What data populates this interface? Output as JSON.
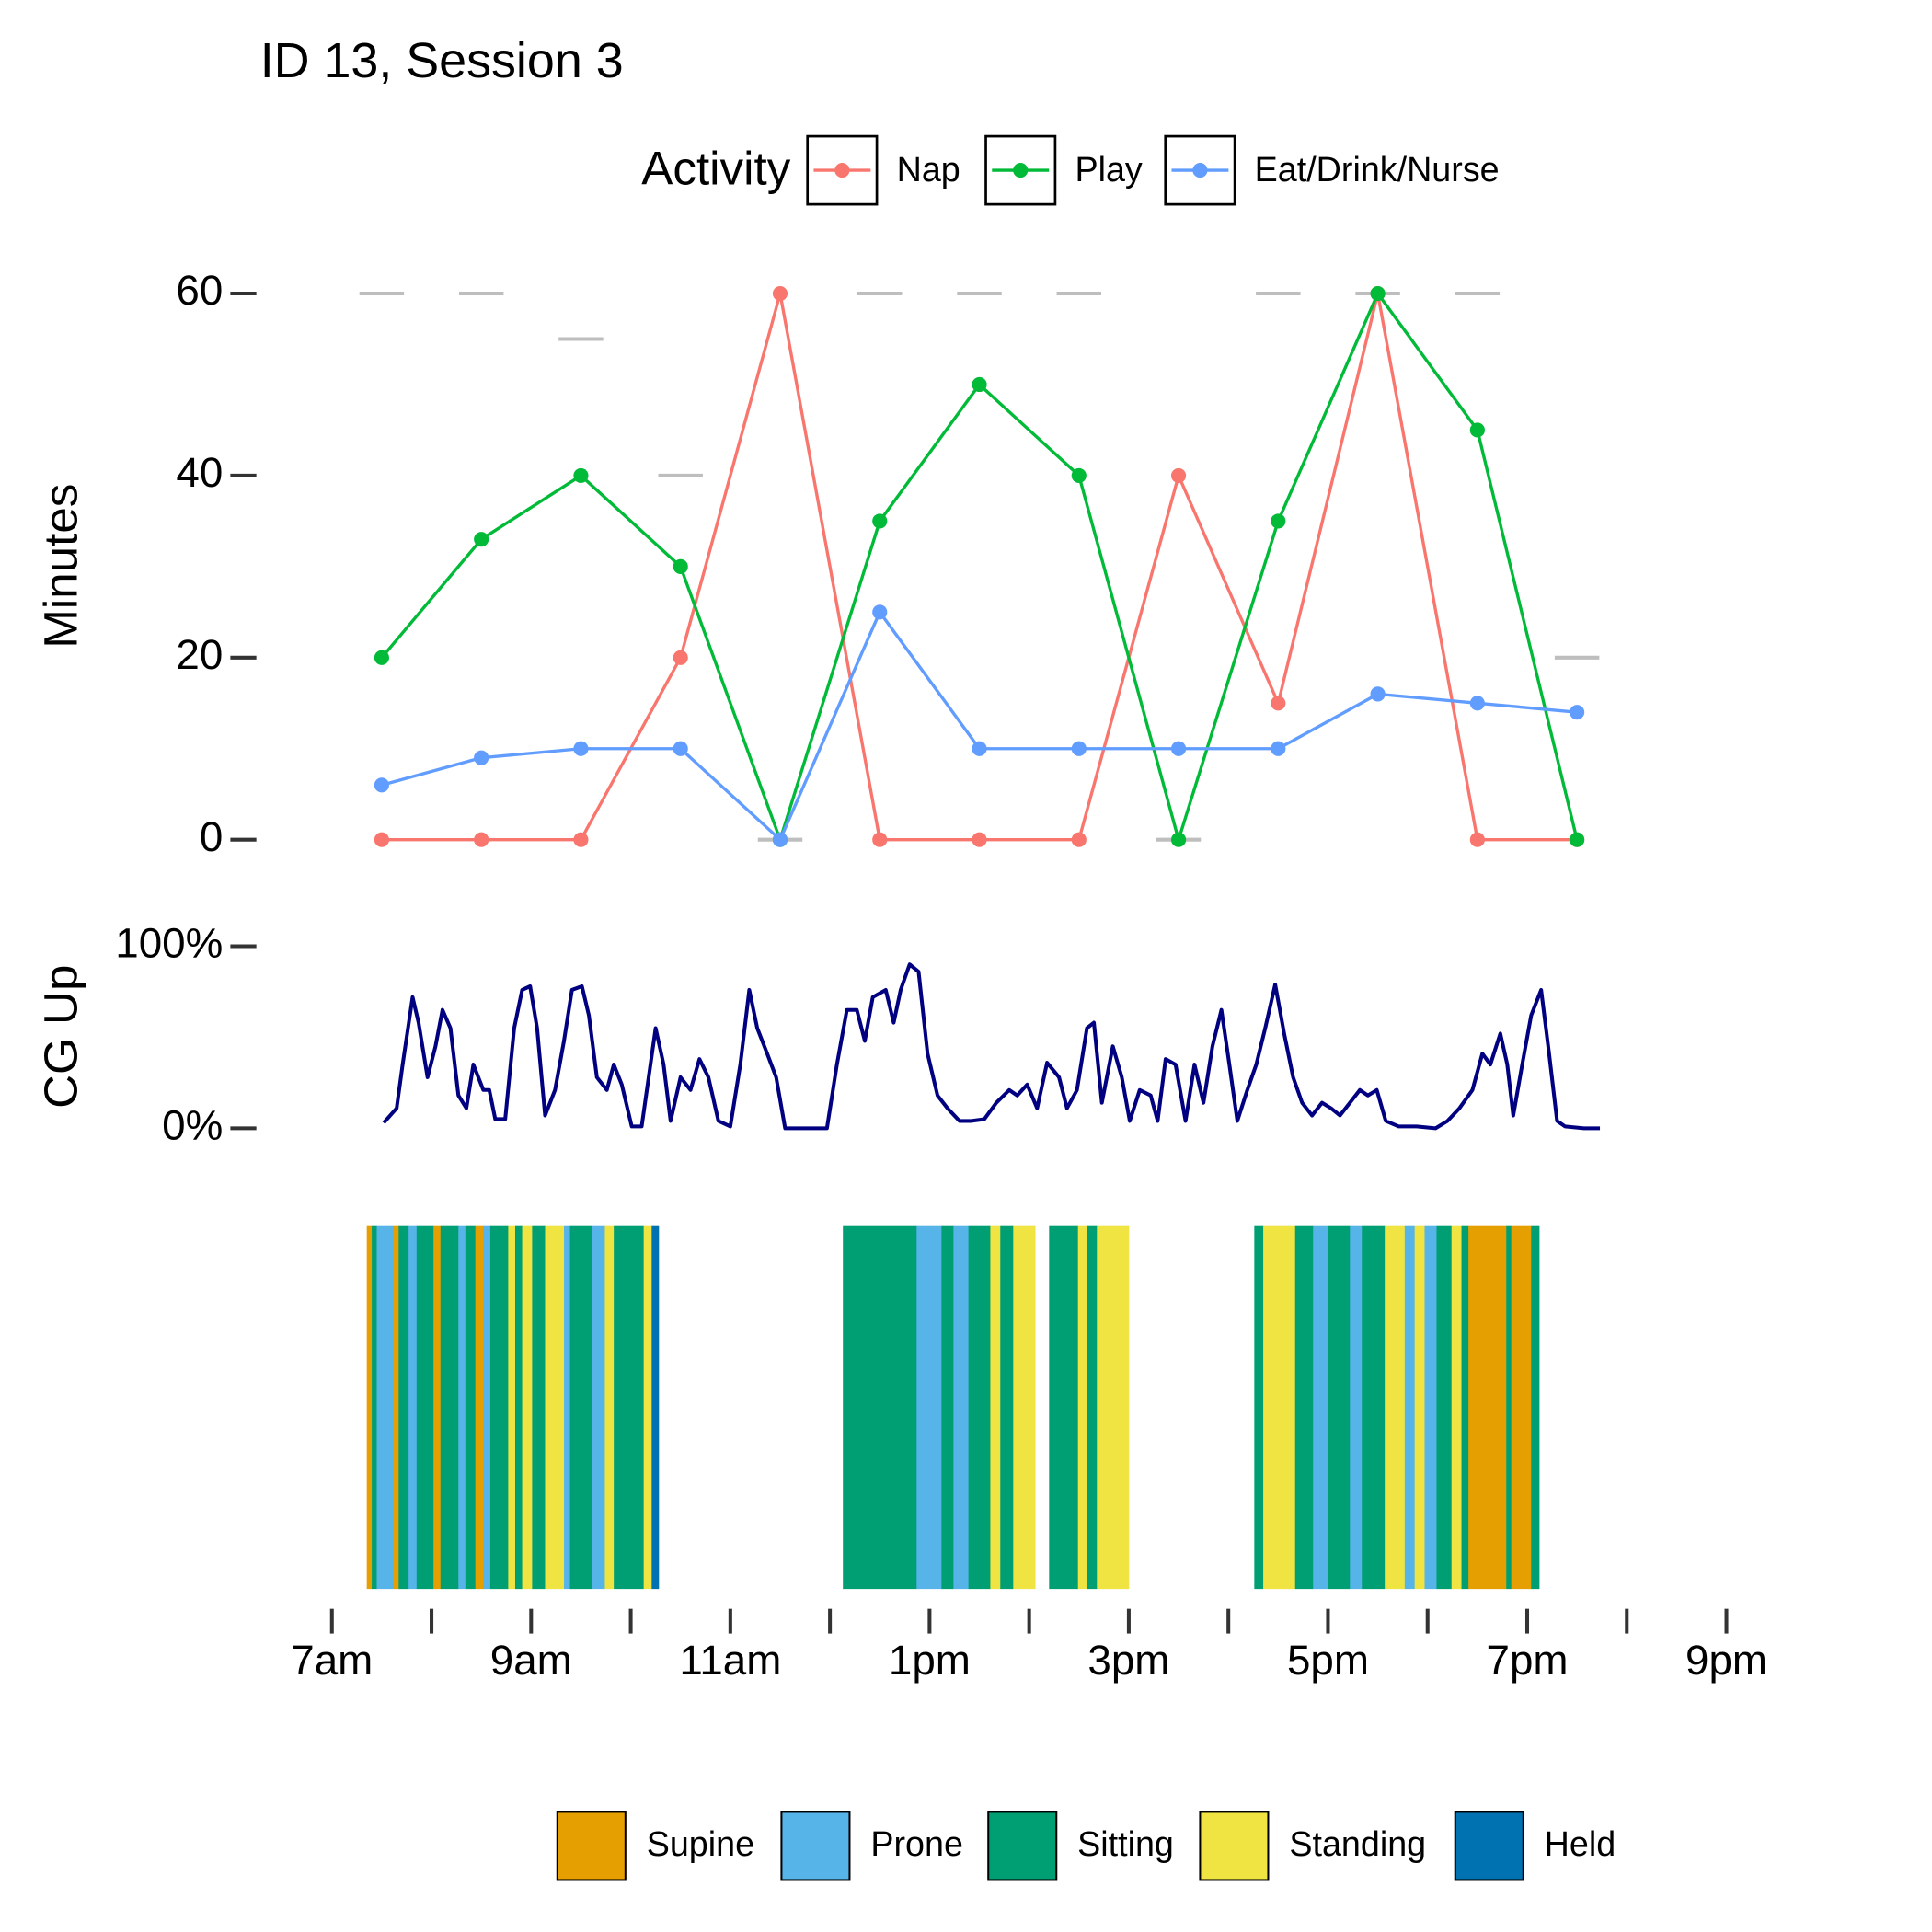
{
  "chart_data": [
    {
      "type": "line",
      "title": "ID 13, Session 3",
      "y_label": "Minutes",
      "legend_title": "Activity",
      "x": [
        7.5,
        8.5,
        9.5,
        10.5,
        11.5,
        12.5,
        13.5,
        14.5,
        15.5,
        16.5,
        17.5,
        18.5,
        19.5
      ],
      "xlim": [
        7,
        21
      ],
      "ylim": [
        0,
        60
      ],
      "yticks": [
        0,
        20,
        40,
        60
      ],
      "series": [
        {
          "color": "#BEBEBE",
          "marker": "dash",
          "values": [
            60,
            60,
            55,
            40,
            0,
            60,
            60,
            60,
            0,
            60,
            60,
            60,
            20
          ]
        },
        {
          "name": "Nap",
          "color": "#F8766D",
          "values": [
            0,
            0,
            0,
            20,
            60,
            0,
            0,
            0,
            40,
            15,
            60,
            0,
            0
          ]
        },
        {
          "name": "Play",
          "color": "#00BA38",
          "values": [
            20,
            33,
            40,
            30,
            0,
            35,
            50,
            40,
            0,
            35,
            60,
            45,
            0
          ]
        },
        {
          "name": "Eat/Drink/Nurse",
          "color": "#619CFF",
          "values": [
            6,
            9,
            10,
            10,
            0,
            25,
            10,
            10,
            10,
            10,
            16,
            15,
            14
          ]
        }
      ]
    },
    {
      "type": "line",
      "y_label": "CG Up",
      "color": "#000080",
      "xlim": [
        7,
        21
      ],
      "ylim": [
        0,
        100
      ],
      "yticks": [
        {
          "value": 0,
          "label": "0%"
        },
        {
          "value": 100,
          "label": "100%"
        }
      ],
      "x": [
        7.52,
        7.65,
        7.71,
        7.81,
        7.87,
        7.96,
        8.04,
        8.11,
        8.19,
        8.27,
        8.35,
        8.42,
        8.52,
        8.58,
        8.64,
        8.74,
        8.83,
        8.91,
        8.99,
        9.06,
        9.14,
        9.24,
        9.33,
        9.41,
        9.51,
        9.58,
        9.66,
        9.76,
        9.83,
        9.91,
        10.01,
        10.11,
        10.18,
        10.25,
        10.33,
        10.4,
        10.5,
        10.6,
        10.69,
        10.78,
        10.88,
        11.0,
        11.1,
        11.19,
        11.27,
        11.37,
        11.46,
        11.55,
        11.75,
        11.97,
        12.07,
        12.17,
        12.27,
        12.35,
        12.43,
        12.56,
        12.64,
        12.71,
        12.8,
        12.89,
        12.98,
        13.08,
        13.18,
        13.3,
        13.42,
        13.55,
        13.67,
        13.8,
        13.88,
        13.98,
        14.08,
        14.18,
        14.3,
        14.38,
        14.48,
        14.58,
        14.65,
        14.73,
        14.84,
        14.93,
        15.01,
        15.11,
        15.22,
        15.29,
        15.37,
        15.47,
        15.57,
        15.66,
        15.75,
        15.84,
        15.93,
        16.01,
        16.09,
        16.19,
        16.28,
        16.37,
        16.47,
        16.56,
        16.65,
        16.74,
        16.84,
        16.94,
        17.03,
        17.12,
        17.22,
        17.32,
        17.4,
        17.49,
        17.58,
        17.71,
        17.89,
        18.08,
        18.2,
        18.32,
        18.45,
        18.55,
        18.63,
        18.73,
        18.8,
        18.86,
        18.95,
        19.04,
        19.14,
        19.22,
        19.3,
        19.38,
        19.57,
        19.73
      ],
      "values": [
        3,
        11,
        35,
        72,
        58,
        28,
        45,
        65,
        55,
        18,
        11,
        35,
        21,
        21,
        5,
        5,
        55,
        76,
        78,
        55,
        7,
        21,
        48,
        76,
        78,
        62,
        28,
        21,
        35,
        24,
        1,
        1,
        28,
        55,
        35,
        4,
        28,
        21,
        38,
        28,
        4,
        1,
        35,
        76,
        55,
        41,
        28,
        0,
        0,
        0,
        35,
        65,
        65,
        48,
        72,
        76,
        58,
        76,
        90,
        86,
        41,
        18,
        11,
        4,
        4,
        5,
        14,
        21,
        18,
        24,
        11,
        36,
        28,
        11,
        21,
        55,
        58,
        14,
        45,
        28,
        4,
        21,
        18,
        4,
        38,
        35,
        4,
        35,
        14,
        45,
        65,
        35,
        4,
        21,
        35,
        55,
        79,
        52,
        28,
        14,
        7,
        14,
        11,
        7,
        14,
        21,
        18,
        21,
        4,
        1,
        1,
        0,
        4,
        11,
        21,
        41,
        35,
        52,
        35,
        7,
        35,
        62,
        76,
        41,
        4,
        1,
        0,
        0
      ]
    },
    {
      "type": "raster",
      "xlim": [
        7,
        21
      ],
      "xticks": [
        {
          "value": 7,
          "label": "7am"
        },
        {
          "value": 8,
          "label": null
        },
        {
          "value": 9,
          "label": "9am"
        },
        {
          "value": 10,
          "label": null
        },
        {
          "value": 11,
          "label": "11am"
        },
        {
          "value": 12,
          "label": null
        },
        {
          "value": 13,
          "label": "1pm"
        },
        {
          "value": 14,
          "label": null
        },
        {
          "value": 15,
          "label": "3pm"
        },
        {
          "value": 16,
          "label": null
        },
        {
          "value": 17,
          "label": "5pm"
        },
        {
          "value": 18,
          "label": null
        },
        {
          "value": 19,
          "label": "7pm"
        },
        {
          "value": 20,
          "label": null
        },
        {
          "value": 21,
          "label": "9pm"
        }
      ],
      "categories": [
        "Supine",
        "Prone",
        "Sitting",
        "Standing",
        "Held"
      ],
      "colors": [
        "#E69F00",
        "#56B4E9",
        "#009E73",
        "#F0E442",
        "#0072B2"
      ],
      "start": [
        7.35,
        7.4,
        7.45,
        7.62,
        7.67,
        7.77,
        7.85,
        8.02,
        8.09,
        8.27,
        8.34,
        8.44,
        8.52,
        8.59,
        8.77,
        8.84,
        8.91,
        9.01,
        9.14,
        9.33,
        9.39,
        9.61,
        9.74,
        9.83,
        10.13,
        10.21,
        12.13,
        12.87,
        13.12,
        13.24,
        13.39,
        13.61,
        13.71,
        13.84,
        14.2,
        14.49,
        14.58,
        14.68,
        16.26,
        16.35,
        16.67,
        16.85,
        17.0,
        17.22,
        17.34,
        17.57,
        17.77,
        17.87,
        17.97,
        18.09,
        18.24,
        18.34,
        18.41,
        18.79,
        18.84,
        19.04
      ],
      "end": [
        7.4,
        7.45,
        7.62,
        7.67,
        7.77,
        7.85,
        8.02,
        8.09,
        8.27,
        8.34,
        8.44,
        8.52,
        8.59,
        8.77,
        8.84,
        8.91,
        9.01,
        9.14,
        9.33,
        9.39,
        9.61,
        9.74,
        9.83,
        10.13,
        10.21,
        10.28,
        12.87,
        13.12,
        13.24,
        13.39,
        13.61,
        13.71,
        13.84,
        14.06,
        14.49,
        14.58,
        14.68,
        15.0,
        16.35,
        16.67,
        16.85,
        17.0,
        17.22,
        17.34,
        17.57,
        17.77,
        17.87,
        17.97,
        18.09,
        18.24,
        18.34,
        18.41,
        18.79,
        18.84,
        19.04,
        19.12
      ],
      "posture": [
        0,
        2,
        1,
        0,
        2,
        1,
        2,
        0,
        2,
        1,
        2,
        0,
        1,
        2,
        3,
        2,
        3,
        2,
        3,
        1,
        2,
        1,
        3,
        2,
        3,
        4,
        2,
        1,
        2,
        1,
        2,
        3,
        2,
        3,
        2,
        3,
        2,
        3,
        2,
        3,
        2,
        1,
        2,
        1,
        2,
        3,
        1,
        3,
        1,
        2,
        3,
        2,
        0,
        2,
        0,
        2
      ]
    }
  ]
}
